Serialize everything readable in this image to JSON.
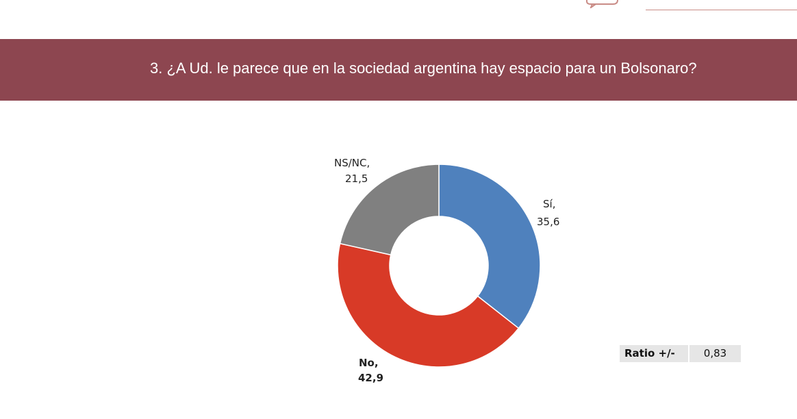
{
  "header": {
    "question": "3. ¿A Ud. le parece que en la sociedad argentina hay espacio para un Bolsonaro?"
  },
  "chart_data": {
    "type": "pie",
    "donut": true,
    "title": "",
    "slices": [
      {
        "label": "Sí,",
        "value": 35.6,
        "value_text": "35,6",
        "color": "#4f81bd",
        "bold": false
      },
      {
        "label": "No,",
        "value": 42.9,
        "value_text": "42,9",
        "color": "#d83a27",
        "bold": true
      },
      {
        "label": "NS/NC,",
        "value": 21.5,
        "value_text": "21,5",
        "color": "#808080",
        "bold": false
      }
    ],
    "start": "12 o'clock",
    "direction": "clockwise",
    "legend": "none"
  },
  "ratio": {
    "label": "Ratio +/-",
    "value": "0,83"
  },
  "colors": {
    "header_band": "#8d4650",
    "ratio_background": "#e6e6e6"
  }
}
